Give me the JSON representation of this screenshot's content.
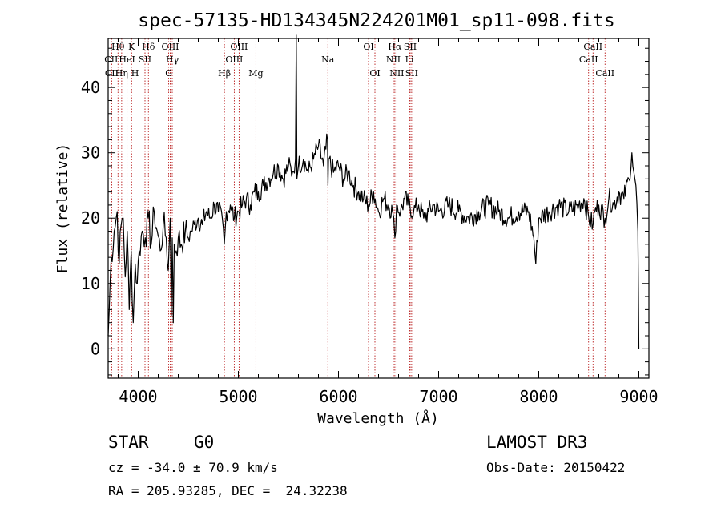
{
  "chart_data": {
    "type": "line",
    "title": "spec-57135-HD134345N224201M01_sp11-098.fits",
    "xlabel": "Wavelength (Å)",
    "ylabel": "Flux (relative)",
    "xlim": [
      3700,
      9100
    ],
    "ylim": [
      -4.5,
      47.5
    ],
    "xticks": [
      4000,
      5000,
      6000,
      7000,
      8000,
      9000
    ],
    "yticks": [
      0,
      10,
      20,
      30,
      40
    ],
    "series": [
      {
        "name": "flux",
        "x": [
          3700,
          3730,
          3760,
          3790,
          3810,
          3830,
          3850,
          3870,
          3890,
          3910,
          3930,
          3950,
          3970,
          3990,
          4010,
          4040,
          4070,
          4100,
          4130,
          4160,
          4190,
          4220,
          4250,
          4280,
          4300,
          4320,
          4330,
          4340,
          4350,
          4360,
          4380,
          4400,
          4430,
          4470,
          4500,
          4530,
          4560,
          4600,
          4640,
          4680,
          4720,
          4760,
          4800,
          4840,
          4860,
          4880,
          4920,
          4960,
          5000,
          5040,
          5080,
          5120,
          5160,
          5200,
          5250,
          5300,
          5350,
          5400,
          5450,
          5500,
          5540,
          5570,
          5578,
          5585,
          5600,
          5650,
          5700,
          5750,
          5800,
          5850,
          5890,
          5895,
          5900,
          5950,
          6000,
          6050,
          6100,
          6150,
          6200,
          6250,
          6300,
          6350,
          6400,
          6450,
          6500,
          6540,
          6563,
          6580,
          6620,
          6660,
          6700,
          6750,
          6800,
          6850,
          6900,
          6950,
          7000,
          7100,
          7200,
          7300,
          7400,
          7500,
          7600,
          7700,
          7800,
          7900,
          7950,
          7970,
          8000,
          8100,
          8200,
          8300,
          8400,
          8450,
          8500,
          8542,
          8560,
          8600,
          8662,
          8700,
          8750,
          8800,
          8850,
          8900,
          8930,
          8950,
          8970,
          8990,
          9000
        ],
        "y": [
          2,
          14,
          18,
          21,
          13,
          19,
          20,
          11,
          18,
          6,
          15,
          4,
          13,
          10,
          15,
          18,
          17,
          20,
          16,
          21,
          18,
          15,
          19,
          17,
          12,
          20,
          5,
          17,
          4,
          16,
          15,
          17,
          16,
          18,
          17,
          18,
          19,
          20,
          19,
          21,
          20,
          22,
          21,
          20,
          16,
          21,
          22,
          20,
          21,
          22,
          23,
          22,
          24,
          24,
          25,
          26,
          27,
          28,
          26,
          28,
          27,
          29,
          48,
          26,
          28,
          29,
          27,
          29,
          31,
          28,
          32,
          25,
          29,
          27,
          28,
          26,
          27,
          25,
          24,
          23,
          22,
          24,
          21,
          23,
          22,
          21,
          17,
          22,
          21,
          23,
          22,
          21,
          22,
          20,
          21,
          22,
          21,
          22,
          21,
          20,
          21,
          22,
          21,
          20,
          21,
          21,
          17,
          13,
          20,
          21,
          22,
          21,
          22,
          23,
          20,
          19,
          21,
          22,
          20,
          23,
          22,
          24,
          23,
          26,
          30,
          27,
          25,
          18,
          0
        ]
      }
    ],
    "spectral_lines": [
      {
        "name": "CII",
        "wavelength": 3730,
        "row": 2
      },
      {
        "name": "CII",
        "wavelength": 3735,
        "row": 3
      },
      {
        "name": "Hθ",
        "wavelength": 3798,
        "row": 1
      },
      {
        "name": "Hη",
        "wavelength": 3835,
        "row": 3
      },
      {
        "name": "HeI",
        "wavelength": 3889,
        "row": 2
      },
      {
        "name": "K",
        "wavelength": 3934,
        "row": 1
      },
      {
        "name": "H",
        "wavelength": 3968,
        "row": 3
      },
      {
        "name": "SII",
        "wavelength": 4068,
        "row": 2
      },
      {
        "name": "Hδ",
        "wavelength": 4102,
        "row": 1
      },
      {
        "name": "OIII",
        "wavelength": 4320,
        "row": 1
      },
      {
        "name": "Hγ",
        "wavelength": 4340,
        "row": 2
      },
      {
        "name": "G",
        "wavelength": 4305,
        "row": 3
      },
      {
        "name": "Hβ",
        "wavelength": 4861,
        "row": 3
      },
      {
        "name": "OIII",
        "wavelength": 4959,
        "row": 2
      },
      {
        "name": "OIII",
        "wavelength": 5007,
        "row": 1
      },
      {
        "name": "Mg",
        "wavelength": 5175,
        "row": 3
      },
      {
        "name": "Na",
        "wavelength": 5894,
        "row": 2
      },
      {
        "name": "OI",
        "wavelength": 6300,
        "row": 1
      },
      {
        "name": "OI",
        "wavelength": 6364,
        "row": 3
      },
      {
        "name": "NII",
        "wavelength": 6548,
        "row": 2
      },
      {
        "name": "Hα",
        "wavelength": 6563,
        "row": 1
      },
      {
        "name": "NII",
        "wavelength": 6583,
        "row": 3
      },
      {
        "name": "Li",
        "wavelength": 6708,
        "row": 2
      },
      {
        "name": "SII",
        "wavelength": 6716,
        "row": 1
      },
      {
        "name": "SII",
        "wavelength": 6731,
        "row": 3
      },
      {
        "name": "CaII",
        "wavelength": 8498,
        "row": 2
      },
      {
        "name": "CaII",
        "wavelength": 8542,
        "row": 1
      },
      {
        "name": "CaII",
        "wavelength": 8662,
        "row": 3
      }
    ],
    "colors": {
      "spectrum": "#000000",
      "line_markers": "#b00000"
    }
  },
  "info": {
    "class_label": "STAR",
    "subclass": "G0",
    "survey": "LAMOST DR3",
    "cz": "cz = -34.0 ± 70.9 km/s",
    "obs_date": "Obs-Date: 20150422",
    "coords": "RA = 205.93285, DEC =  24.32238"
  }
}
